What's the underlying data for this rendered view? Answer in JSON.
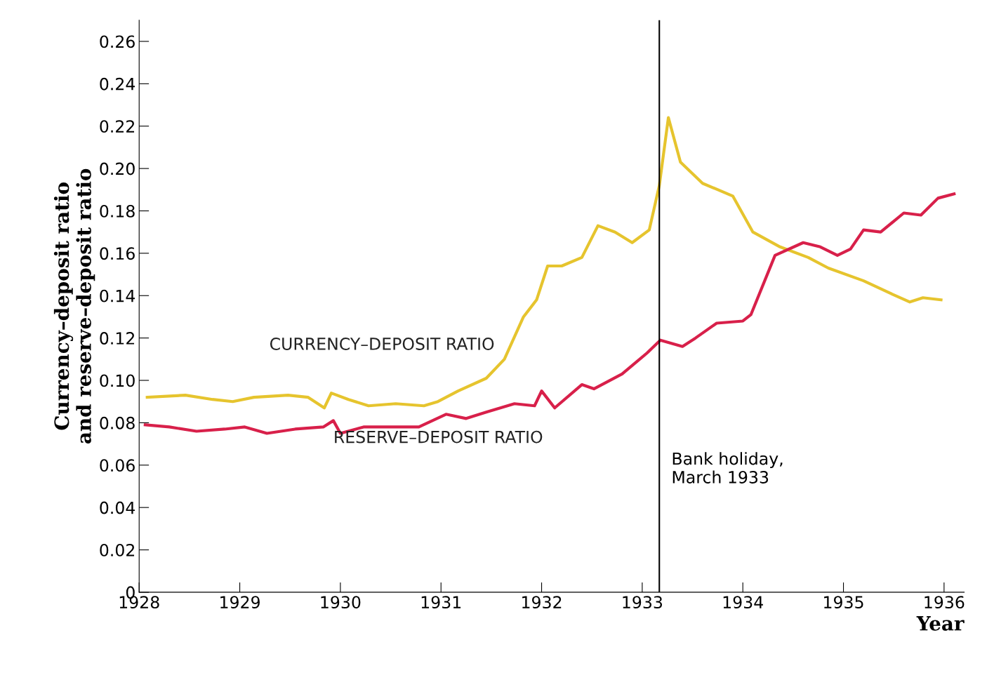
{
  "chart_data": {
    "type": "line",
    "xlabel": "Year",
    "ylabel": "Currency–deposit ratio\nand reserve–deposit ratio",
    "xlim": [
      1928,
      1936.2
    ],
    "xticks": [
      1928,
      1929,
      1930,
      1931,
      1932,
      1933,
      1934,
      1935,
      1936
    ],
    "ylim": [
      0,
      0.27
    ],
    "yticks": [
      {
        "value": 0,
        "label": "0"
      },
      {
        "value": 0.02,
        "label": "0.02"
      },
      {
        "value": 0.04,
        "label": "0.04"
      },
      {
        "value": 0.06,
        "label": "0.06"
      },
      {
        "value": 0.08,
        "label": "0.08"
      },
      {
        "value": 0.1,
        "label": "0.10"
      },
      {
        "value": 0.12,
        "label": "0.12"
      },
      {
        "value": 0.14,
        "label": "0.14"
      },
      {
        "value": 0.16,
        "label": "0.16"
      },
      {
        "value": 0.18,
        "label": "0.18"
      },
      {
        "value": 0.2,
        "label": "0.20"
      },
      {
        "value": 0.22,
        "label": "0.22"
      },
      {
        "value": 0.24,
        "label": "0.24"
      },
      {
        "value": 0.26,
        "label": "0.26"
      }
    ],
    "grid": false,
    "legend": false,
    "marker": "none",
    "line_style": "solid",
    "series": [
      {
        "name": "CURRENCY–DEPOSIT RATIO",
        "color": "#e6c42e",
        "x": [
          1928.08,
          1928.46,
          1928.73,
          1928.93,
          1929.14,
          1929.48,
          1929.68,
          1929.84,
          1929.91,
          1930.08,
          1930.28,
          1930.55,
          1930.83,
          1930.97,
          1931.17,
          1931.45,
          1931.63,
          1931.82,
          1931.95,
          1932.06,
          1932.2,
          1932.4,
          1932.56,
          1932.73,
          1932.9,
          1933.07,
          1933.17,
          1933.26,
          1933.38,
          1933.6,
          1933.9,
          1934.1,
          1934.37,
          1934.65,
          1934.85,
          1935.2,
          1935.47,
          1935.66,
          1935.79,
          1935.97
        ],
        "values": [
          0.092,
          0.093,
          0.091,
          0.09,
          0.092,
          0.093,
          0.092,
          0.087,
          0.094,
          0.091,
          0.088,
          0.089,
          0.088,
          0.09,
          0.095,
          0.101,
          0.11,
          0.13,
          0.138,
          0.154,
          0.154,
          0.158,
          0.173,
          0.17,
          0.165,
          0.171,
          0.192,
          0.224,
          0.203,
          0.193,
          0.187,
          0.17,
          0.163,
          0.158,
          0.153,
          0.147,
          0.141,
          0.137,
          0.139,
          0.138
        ]
      },
      {
        "name": "RESERVE–DEPOSIT RATIO",
        "color": "#d8204a",
        "x": [
          1928.06,
          1928.3,
          1928.57,
          1928.85,
          1929.05,
          1929.27,
          1929.55,
          1929.83,
          1929.93,
          1930.0,
          1930.23,
          1930.5,
          1930.78,
          1931.05,
          1931.25,
          1931.45,
          1931.73,
          1931.93,
          1932.0,
          1932.13,
          1932.4,
          1932.52,
          1932.8,
          1933.05,
          1933.18,
          1933.4,
          1933.53,
          1933.74,
          1934.0,
          1934.08,
          1934.32,
          1934.6,
          1934.77,
          1934.94,
          1935.07,
          1935.2,
          1935.37,
          1935.6,
          1935.77,
          1935.94,
          1936.1
        ],
        "values": [
          0.079,
          0.078,
          0.076,
          0.077,
          0.078,
          0.075,
          0.077,
          0.078,
          0.081,
          0.075,
          0.078,
          0.078,
          0.078,
          0.084,
          0.082,
          0.085,
          0.089,
          0.088,
          0.095,
          0.087,
          0.098,
          0.096,
          0.103,
          0.113,
          0.119,
          0.116,
          0.12,
          0.127,
          0.128,
          0.131,
          0.159,
          0.165,
          0.163,
          0.159,
          0.162,
          0.171,
          0.17,
          0.179,
          0.178,
          0.186,
          0.188
        ]
      }
    ],
    "ref_lines": [
      {
        "axis": "x",
        "value": 1933.17,
        "label": "Bank holiday,\nMarch 1933",
        "color": "#000000"
      }
    ]
  }
}
